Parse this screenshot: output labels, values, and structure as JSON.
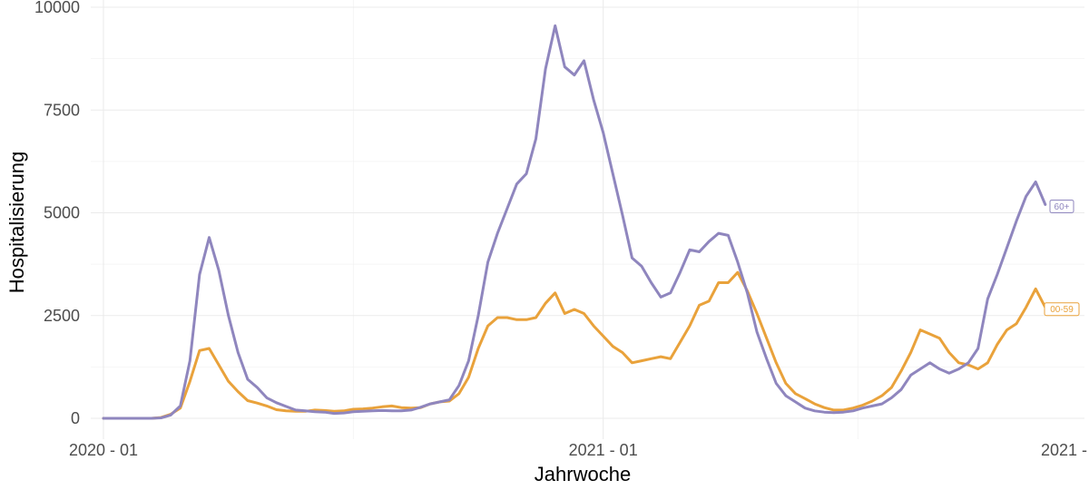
{
  "chart_data": {
    "type": "line",
    "xlabel": "Jahrwoche",
    "ylabel": "Hospitalisierung",
    "ylim": [
      0,
      10000
    ],
    "yticks": [
      0,
      2500,
      5000,
      7500,
      10000
    ],
    "ytick_labels": [
      "0",
      "2500",
      "5000",
      "7500",
      "10000"
    ],
    "xtick_labels": [
      "2020 - 01",
      "2021 - 01",
      "2021 -"
    ],
    "x_week_count": 107,
    "x_tick_weeks": [
      1,
      53,
      106
    ],
    "grid": true,
    "legend": "end-of-line labels",
    "series": [
      {
        "name": "60+",
        "color": "#8F86BE",
        "values": [
          0,
          0,
          0,
          0,
          0,
          0,
          10,
          80,
          300,
          1400,
          3500,
          4400,
          3600,
          2500,
          1600,
          950,
          750,
          500,
          380,
          290,
          200,
          180,
          160,
          150,
          120,
          130,
          160,
          170,
          180,
          190,
          180,
          180,
          200,
          270,
          350,
          400,
          450,
          800,
          1400,
          2500,
          3800,
          4500,
          5100,
          5700,
          5950,
          6800,
          8500,
          9550,
          8550,
          8350,
          8700,
          7750,
          6950,
          5950,
          4950,
          3900,
          3700,
          3300,
          2950,
          3050,
          3550,
          4100,
          4050,
          4300,
          4500,
          4450,
          3800,
          3050,
          2100,
          1450,
          850,
          550,
          400,
          250,
          180,
          150,
          140,
          150,
          180,
          250,
          300,
          350,
          500,
          700,
          1050,
          1200,
          1350,
          1200,
          1100,
          1200,
          1350,
          1700,
          2900,
          3500,
          4150,
          4800,
          5400,
          5750,
          5200
        ]
      },
      {
        "name": "00-59",
        "color": "#E9A23B",
        "values": [
          0,
          0,
          0,
          0,
          0,
          0,
          20,
          100,
          250,
          900,
          1650,
          1700,
          1300,
          900,
          650,
          430,
          370,
          300,
          210,
          180,
          170,
          170,
          200,
          190,
          170,
          180,
          220,
          230,
          250,
          280,
          300,
          260,
          250,
          260,
          350,
          400,
          420,
          600,
          1000,
          1700,
          2250,
          2450,
          2450,
          2400,
          2400,
          2450,
          2800,
          3050,
          2550,
          2650,
          2550,
          2250,
          2000,
          1750,
          1600,
          1350,
          1400,
          1450,
          1500,
          1450,
          1850,
          2250,
          2750,
          2850,
          3300,
          3300,
          3550,
          3100,
          2550,
          1950,
          1350,
          850,
          600,
          480,
          350,
          260,
          200,
          200,
          250,
          320,
          420,
          550,
          750,
          1150,
          1600,
          2150,
          2050,
          1950,
          1600,
          1350,
          1300,
          1200,
          1350,
          1800,
          2150,
          2300,
          2700,
          3150,
          2700
        ]
      }
    ]
  }
}
